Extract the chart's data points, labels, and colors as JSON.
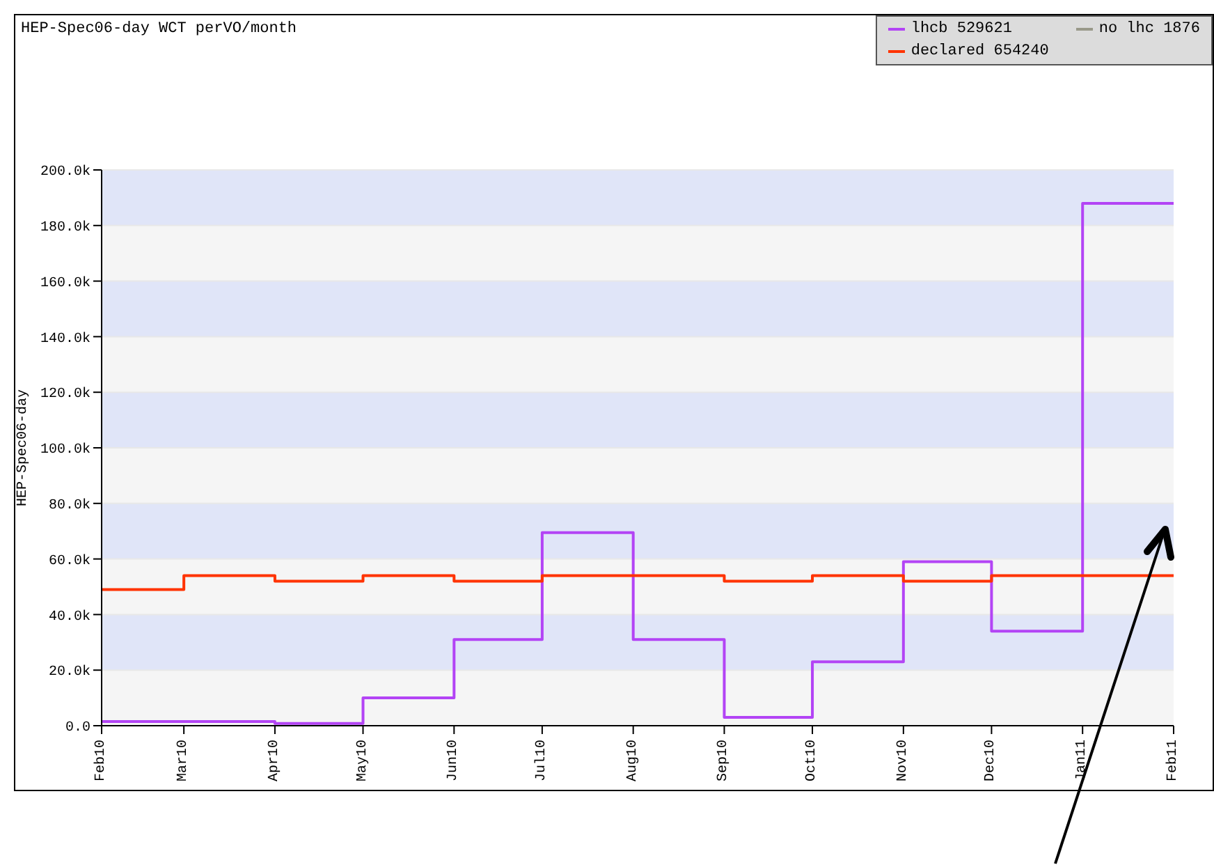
{
  "chart_data": {
    "type": "step",
    "title": "HEP-Spec06-day WCT perVO/month",
    "ylabel": "HEP-Spec06-day",
    "x": [
      "2010-02",
      "2010-03",
      "2010-04",
      "2010-05",
      "2010-06",
      "2010-07",
      "2010-08",
      "2010-09",
      "2010-10",
      "2010-11",
      "2010-12",
      "2011-01",
      "2011-02"
    ],
    "series": [
      {
        "name": "lhcb 529621",
        "color": "#b344f5",
        "values": [
          1500,
          1500,
          800,
          10000,
          31000,
          69500,
          31000,
          3000,
          23000,
          59000,
          34000,
          188000,
          188000
        ]
      },
      {
        "name": "no lhc 1876",
        "color": "#99998a",
        "values": [
          null,
          null,
          null,
          null,
          null,
          null,
          null,
          null,
          null,
          null,
          null,
          null,
          null
        ]
      },
      {
        "name": "declared 654240",
        "color": "#ff3300",
        "values": [
          49000,
          54000,
          52000,
          54000,
          52000,
          54000,
          54000,
          52000,
          54000,
          52000,
          54000,
          54000,
          54000
        ]
      }
    ],
    "xlim": [
      "2010-02",
      "2011-02"
    ],
    "xticks": [
      {
        "value": "2010-02",
        "label": "Feb10"
      },
      {
        "value": "2010-03",
        "label": "Mar10"
      },
      {
        "value": "2010-04",
        "label": "Apr10"
      },
      {
        "value": "2010-05",
        "label": "May10"
      },
      {
        "value": "2010-06",
        "label": "Jun10"
      },
      {
        "value": "2010-07",
        "label": "Jul10"
      },
      {
        "value": "2010-08",
        "label": "Aug10"
      },
      {
        "value": "2010-09",
        "label": "Sep10"
      },
      {
        "value": "2010-10",
        "label": "Oct10"
      },
      {
        "value": "2010-11",
        "label": "Nov10"
      },
      {
        "value": "2010-12",
        "label": "Dec10"
      },
      {
        "value": "2011-01",
        "label": "Jan11"
      },
      {
        "value": "2011-02",
        "label": "Feb11"
      }
    ],
    "ylim": [
      0,
      200000
    ],
    "yticks": [
      {
        "value": 0,
        "label": "0.0"
      },
      {
        "value": 20000,
        "label": "20.0k"
      },
      {
        "value": 40000,
        "label": "40.0k"
      },
      {
        "value": 60000,
        "label": "60.0k"
      },
      {
        "value": 80000,
        "label": "80.0k"
      },
      {
        "value": 100000,
        "label": "100.0k"
      },
      {
        "value": 120000,
        "label": "120.0k"
      },
      {
        "value": 140000,
        "label": "140.0k"
      },
      {
        "value": 160000,
        "label": "160.0k"
      },
      {
        "value": 180000,
        "label": "180.0k"
      },
      {
        "value": 200000,
        "label": "200.0k"
      }
    ],
    "grid": "y",
    "legend": "top right",
    "line_style": "solid"
  }
}
